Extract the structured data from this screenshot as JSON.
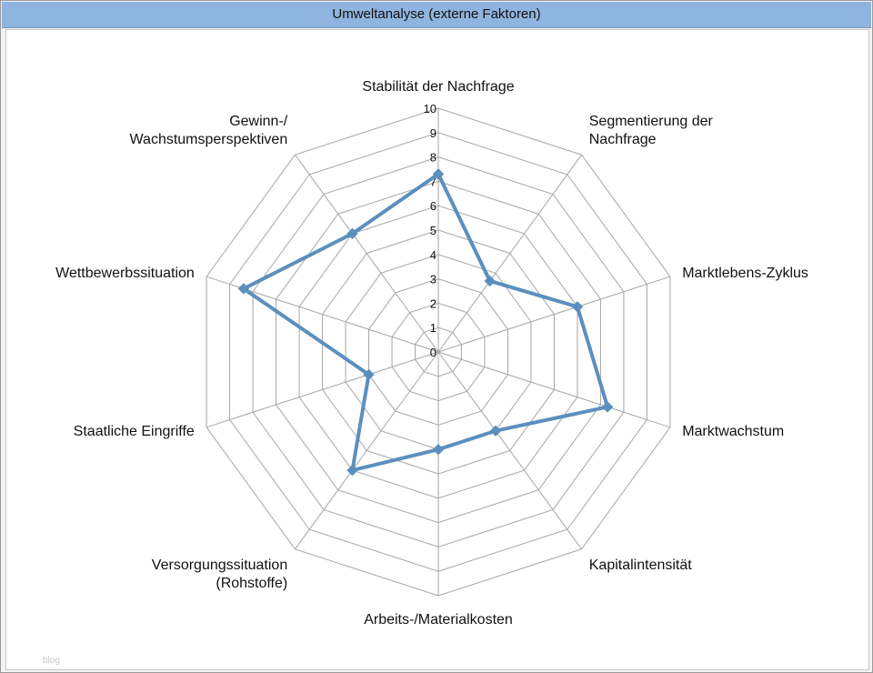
{
  "window": {
    "title": "Umweltanalyse (externe Faktoren)",
    "watermark": "blog"
  },
  "colors": {
    "title_bar": "#8fb4df",
    "series": "#5b8fbf",
    "grid": "#a6a6a6"
  },
  "chart_data": {
    "type": "radar",
    "title": "",
    "categories": [
      "Stabilität der Nachfrage",
      "Segmentierung der Nachfrage",
      "Marktlebens-Zyklus",
      "Marktwachstum",
      "Kapitalintensität",
      "Arbeits-/Materialkosten",
      "Versorgungssituation (Rohstoffe)",
      "Staatliche Eingriffe",
      "Wettbewerbssituation",
      "Gewinn-/ Wachstumsperspektiven"
    ],
    "category_lines": [
      [
        "Stabilität der Nachfrage"
      ],
      [
        "Segmentierung der",
        "Nachfrage"
      ],
      [
        "Marktlebens-Zyklus"
      ],
      [
        "Marktwachstum"
      ],
      [
        "Kapitalintensität"
      ],
      [
        "Arbeits-/Materialkosten"
      ],
      [
        "Versorgungssituation",
        "(Rohstoffe)"
      ],
      [
        "Staatliche Eingriffe"
      ],
      [
        "Wettbewerbssituation"
      ],
      [
        "Gewinn-/",
        "Wachstumsperspektiven"
      ]
    ],
    "series": [
      {
        "values": [
          7.3,
          3.6,
          6.0,
          7.3,
          4.0,
          4.0,
          6.0,
          3.0,
          8.4,
          6.0
        ]
      }
    ],
    "rlim": [
      0,
      10
    ],
    "ticks": [
      "0",
      "1",
      "2",
      "3",
      "4",
      "5",
      "6",
      "7",
      "8",
      "9",
      "10"
    ],
    "grid": true,
    "legend": "none"
  }
}
